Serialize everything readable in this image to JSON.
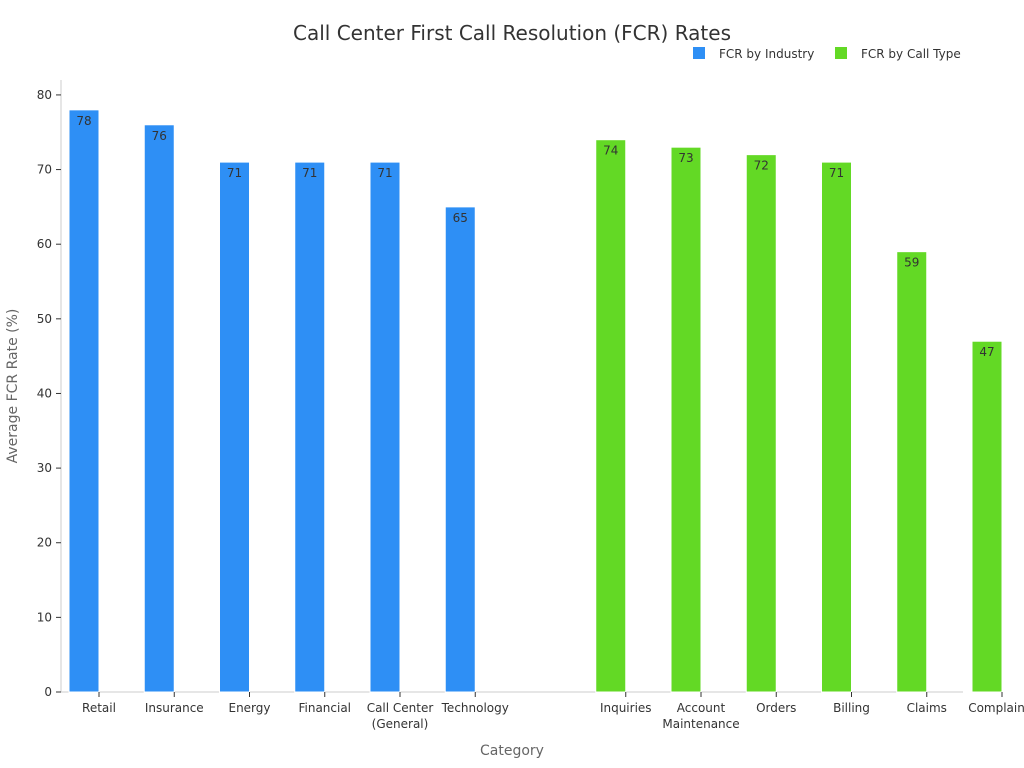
{
  "chart_data": {
    "type": "bar",
    "title": "Call Center First Call Resolution (FCR) Rates",
    "xlabel": "Category",
    "ylabel": "Average FCR Rate (%)",
    "ylim": [
      0,
      82
    ],
    "yticks": [
      0,
      10,
      20,
      30,
      40,
      50,
      60,
      70,
      80
    ],
    "grid": false,
    "legend_position": "top-right",
    "series": [
      {
        "name": "FCR by Industry",
        "color": "#2e8ff5",
        "categories": [
          [
            "Retail"
          ],
          [
            "Insurance"
          ],
          [
            "Energy"
          ],
          [
            "Financial"
          ],
          [
            "Call Center",
            "(General)"
          ],
          [
            "Technology"
          ]
        ],
        "values": [
          78,
          76,
          71,
          71,
          71,
          65
        ]
      },
      {
        "name": "FCR by Call Type",
        "color": "#63d925",
        "categories": [
          [
            "Inquiries"
          ],
          [
            "Account",
            "Maintenance"
          ],
          [
            "Orders"
          ],
          [
            "Billing"
          ],
          [
            "Claims"
          ],
          [
            "Complaints"
          ]
        ],
        "values": [
          74,
          73,
          72,
          71,
          59,
          47
        ]
      }
    ]
  }
}
